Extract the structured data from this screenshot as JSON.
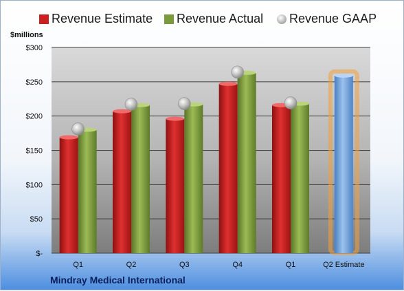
{
  "legend": {
    "estimate": "Revenue Estimate",
    "actual": "Revenue Actual",
    "gaap": "Revenue GAAP"
  },
  "unit_label": "$millions",
  "company": "Mindray Medical International",
  "colors": {
    "estimate": "#cc1f1f",
    "actual": "#7a9a3c",
    "gaap": "#b8b8b8",
    "forecast": "#6e9fd8",
    "forecast_glow": "#f0a040"
  },
  "chart_data": {
    "type": "bar",
    "categories": [
      "Q1",
      "Q2",
      "Q3",
      "Q4",
      "Q1",
      "Q2 Estimate"
    ],
    "series": [
      {
        "name": "Revenue Estimate",
        "values": [
          169,
          207,
          196,
          247,
          216,
          null
        ]
      },
      {
        "name": "Revenue Actual",
        "values": [
          180,
          216,
          217,
          263,
          218,
          259
        ]
      },
      {
        "name": "Revenue GAAP",
        "values": [
          181,
          217,
          218,
          264,
          219,
          null
        ]
      }
    ],
    "ylim": [
      0,
      300
    ],
    "yticks": [
      0,
      50,
      100,
      150,
      200,
      250,
      300
    ],
    "ytick_labels": [
      "$-",
      "$50",
      "$100",
      "$150",
      "$200",
      "$250",
      "$300"
    ],
    "grid": true,
    "legend_position": "top"
  }
}
